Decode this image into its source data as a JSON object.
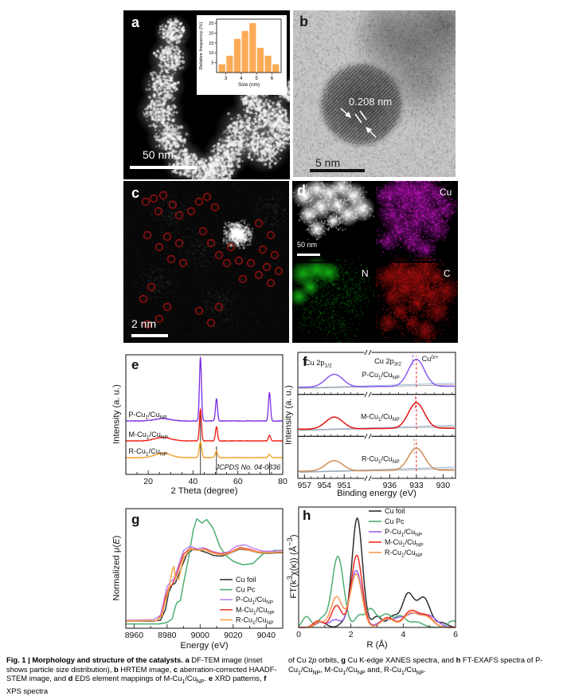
{
  "panels": {
    "a": {
      "label": "a",
      "scalebar": "50 nm"
    },
    "b": {
      "label": "b",
      "annotation": "0.208 nm",
      "scalebar": "5 nm"
    },
    "c": {
      "label": "c",
      "scalebar": "2 nm",
      "circle_count": 40,
      "circle_color": "#c81414"
    },
    "d": {
      "label": "d",
      "scalebar": "50 nm",
      "maps": [
        {
          "label": "Cu",
          "color": "#e41be4"
        },
        {
          "label": "N",
          "color": "#16c316"
        },
        {
          "label": "C",
          "color": "#e81515"
        }
      ]
    }
  },
  "caption": {
    "left_html": "<b>Fig. 1 | Morphology and structure of the catalysts.</b> <b>a</b> DF-TEM image (inset shows particle size distribution), <b>b</b> HRTEM image, <b>c</b> aberration-corrected HAADF-STEM image, and <b>d</b> EDS element mappings of M-Cu<sub>1</sub>/Cu<sub>NP</sub>. <b>e</b> XRD patterns, <b>f</b> XPS spectra",
    "right_html": "of Cu 2<i>p</i> orbits, <b>g</b> Cu K-edge XANES spectra, and <b>h</b> FT-EXAFS spectra of P-Cu<sub>1</sub>/Cu<sub>NP</sub>, M-Cu<sub>1</sub>/Cu<sub>NP</sub> and, R-Cu<sub>1</sub>/Cu<sub>NP</sub>."
  },
  "chart_data": [
    {
      "id": "histogram",
      "type": "bar",
      "xlabel": "Size (nm)",
      "ylabel": "Relative frequency (%)",
      "bin_centers": [
        2.75,
        3.25,
        3.75,
        4.25,
        4.75,
        5.25,
        5.75,
        6.25
      ],
      "values": [
        4.2,
        8.5,
        17,
        21,
        25,
        12.5,
        8.5,
        4.2
      ],
      "xticks": [
        3,
        4,
        5,
        6
      ],
      "yticks": [
        5,
        10,
        15,
        20,
        25
      ],
      "xlim": [
        2.4,
        6.6
      ],
      "ylim": [
        0,
        27
      ],
      "bar_color": "#fbab57"
    },
    {
      "id": "xrd",
      "type": "line",
      "panel_label": "e",
      "xlabel": "2 Theta (degree)",
      "ylabel": "Intensity (a. u.)",
      "xlim": [
        10,
        80
      ],
      "xticks": [
        20,
        40,
        60,
        80
      ],
      "series": [
        {
          "name": "P-Cu_{1}/Cu_{NP}",
          "color": "#7a2ce0",
          "baseline": 67,
          "sigma": 0.45,
          "peaks": [
            [
              43.3,
              80
            ],
            [
              50.45,
              28
            ],
            [
              74.1,
              36
            ]
          ],
          "hump": [
            26.5,
            3,
            3.5
          ]
        },
        {
          "name": "M-Cu_{1}/Cu_{NP}",
          "color": "#ee1b10",
          "baseline": 42,
          "sigma": 0.45,
          "peaks": [
            [
              43.3,
              40
            ],
            [
              50.45,
              18
            ],
            [
              74.1,
              7
            ]
          ],
          "hump": [
            26.5,
            4.5,
            3.5
          ]
        },
        {
          "name": "R-Cu_{1}/Cu_{NP}",
          "color": "#f59d1f",
          "baseline": 21,
          "sigma": 0.55,
          "peaks": [
            [
              43.3,
              20
            ],
            [
              50.45,
              8
            ],
            [
              74.1,
              4
            ]
          ],
          "hump": [
            26.5,
            5.5,
            3.5
          ]
        }
      ],
      "ref_sticks": {
        "label": "JCPDS No. 04-0836",
        "color": "#3c3c3c",
        "positions": [
          [
            43.3,
            75
          ],
          [
            50.45,
            35
          ],
          [
            74.1,
            15
          ]
        ]
      }
    },
    {
      "id": "xps",
      "type": "line-multipanel",
      "panel_label": "f",
      "xlabel": "Binding energy (eV)",
      "ylabel": "Intensity (a. u.)",
      "ticks": [
        957,
        954,
        951,
        936,
        933,
        930
      ],
      "segments": [
        {
          "range": [
            958,
            948
          ],
          "span": [
            0,
            0.42
          ]
        },
        {
          "range": [
            938,
            928.6
          ],
          "span": [
            0.47,
            1
          ]
        }
      ],
      "annotations": {
        "p12": "Cu 2p_{1/2}",
        "p32": "Cu 2p_{3/2}",
        "ox": "Cu^{0/+}"
      },
      "ref_line": {
        "x": 933.0,
        "color": "#e02020"
      },
      "peak_centers": {
        "p32": 933.0,
        "p32_sigma": 0.9,
        "p12": 952.5,
        "p12_sigma": 1.3
      },
      "subpanels": [
        {
          "name": "P-Cu_{1}/Cu_{NP}",
          "color": "#8a5af0",
          "amp32": 34,
          "amp12": 16,
          "accent_line": 933.4
        },
        {
          "name": "M-Cu_{1}/Cu_{NP}",
          "color": "#e81212",
          "amp32": 32,
          "amp12": 15,
          "accent_line": 933.1
        },
        {
          "name": "R-Cu_{1}/Cu_{NP}",
          "color": "#cf8d55",
          "amp32": 28,
          "amp12": 13,
          "accent_line": 933.25
        }
      ],
      "bg_line_colors": [
        "#9db6d6",
        "#9a9a9a"
      ]
    },
    {
      "id": "xanes",
      "type": "line",
      "panel_label": "g",
      "xlabel": "Energy (eV)",
      "ylabel": "Intensity (a. u.)",
      "ylabel_html": "Normalized μ(<i>E</i>)",
      "xlim": [
        8955,
        9050
      ],
      "ylim": [
        -0.08,
        1.58
      ],
      "xticks": [
        8960,
        8980,
        9000,
        9020,
        9040
      ],
      "legend_position": "bottom-right",
      "series": [
        {
          "name": "Cu foil",
          "color": "#3a3a3a",
          "points": [
            [
              8955,
              0.02
            ],
            [
              8970,
              0.02
            ],
            [
              8976,
              0.03
            ],
            [
              8979,
              0.18
            ],
            [
              8981,
              0.42
            ],
            [
              8983,
              0.52
            ],
            [
              8985,
              0.55
            ],
            [
              8988,
              0.72
            ],
            [
              8992,
              0.95
            ],
            [
              8996,
              1.02
            ],
            [
              9000,
              1.0
            ],
            [
              9004,
              0.97
            ],
            [
              9008,
              0.93
            ],
            [
              9013,
              0.92
            ],
            [
              9018,
              0.96
            ],
            [
              9024,
              1.02
            ],
            [
              9030,
              1.0
            ],
            [
              9035,
              0.97
            ],
            [
              9040,
              0.96
            ],
            [
              9050,
              0.97
            ]
          ]
        },
        {
          "name": "Cu Pc",
          "color": "#4caf72",
          "points": [
            [
              8955,
              -0.02
            ],
            [
              8975,
              -0.02
            ],
            [
              8980,
              0.0
            ],
            [
              8983,
              0.05
            ],
            [
              8985,
              0.22
            ],
            [
              8986,
              0.28
            ],
            [
              8988,
              0.3
            ],
            [
              8990,
              0.55
            ],
            [
              8993,
              0.9
            ],
            [
              8996,
              1.3
            ],
            [
              8998,
              1.44
            ],
            [
              9001,
              1.38
            ],
            [
              9004,
              1.43
            ],
            [
              9008,
              1.3
            ],
            [
              9012,
              1.05
            ],
            [
              9016,
              0.92
            ],
            [
              9020,
              0.85
            ],
            [
              9026,
              0.8
            ],
            [
              9032,
              0.82
            ],
            [
              9038,
              0.95
            ],
            [
              9045,
              1.0
            ],
            [
              9050,
              1.0
            ]
          ]
        },
        {
          "name": "P-Cu_{1}/Cu_{NP}",
          "color": "#bd85f2",
          "points": [
            [
              8955,
              0.03
            ],
            [
              8972,
              0.04
            ],
            [
              8976,
              0.1
            ],
            [
              8978,
              0.3
            ],
            [
              8980,
              0.5
            ],
            [
              8982,
              0.56
            ],
            [
              8984,
              0.6
            ],
            [
              8987,
              0.8
            ],
            [
              8990,
              1.0
            ],
            [
              8994,
              1.06
            ],
            [
              8998,
              1.02
            ],
            [
              9002,
              1.04
            ],
            [
              9007,
              0.99
            ],
            [
              9012,
              0.96
            ],
            [
              9017,
              0.98
            ],
            [
              9022,
              1.06
            ],
            [
              9027,
              1.08
            ],
            [
              9032,
              1.03
            ],
            [
              9038,
              0.99
            ],
            [
              9045,
              0.99
            ],
            [
              9050,
              1.0
            ]
          ]
        },
        {
          "name": "M-Cu_{1}/Cu_{NP}",
          "color": "#ef4136",
          "points": [
            [
              8955,
              0.02
            ],
            [
              8974,
              0.03
            ],
            [
              8977,
              0.12
            ],
            [
              8979,
              0.35
            ],
            [
              8981,
              0.48
            ],
            [
              8983,
              0.52
            ],
            [
              8986,
              0.68
            ],
            [
              8990,
              0.95
            ],
            [
              8994,
              1.03
            ],
            [
              8998,
              1.0
            ],
            [
              9003,
              1.02
            ],
            [
              9008,
              0.97
            ],
            [
              9013,
              0.95
            ],
            [
              9018,
              0.97
            ],
            [
              9024,
              1.04
            ],
            [
              9029,
              1.02
            ],
            [
              9035,
              0.98
            ],
            [
              9042,
              0.97
            ],
            [
              9050,
              0.98
            ]
          ]
        },
        {
          "name": "R-Cu_{1}/Cu_{NP}",
          "color": "#f9a348",
          "points": [
            [
              8955,
              0.02
            ],
            [
              8974,
              0.03
            ],
            [
              8977,
              0.1
            ],
            [
              8979,
              0.3
            ],
            [
              8981,
              0.45
            ],
            [
              8983,
              0.72
            ],
            [
              8984,
              0.78
            ],
            [
              8985,
              0.62
            ],
            [
              8987,
              0.6
            ],
            [
              8990,
              0.9
            ],
            [
              8994,
              1.02
            ],
            [
              8998,
              1.0
            ],
            [
              9003,
              1.01
            ],
            [
              9008,
              0.96
            ],
            [
              9013,
              0.94
            ],
            [
              9018,
              0.96
            ],
            [
              9024,
              1.03
            ],
            [
              9030,
              1.0
            ],
            [
              9036,
              0.97
            ],
            [
              9044,
              0.97
            ],
            [
              9050,
              0.98
            ]
          ]
        }
      ]
    },
    {
      "id": "exafs",
      "type": "line",
      "panel_label": "h",
      "xlabel": "R (Å)",
      "ylabel_html": "FT(k<sup>3</sup>χ(κ)) (Å<sup>−3</sup>)",
      "xlim": [
        0,
        6
      ],
      "ylim": [
        0,
        1.1
      ],
      "xticks": [
        0,
        2,
        4,
        6
      ],
      "legend_position": "top-right",
      "series": [
        {
          "name": "Cu foil",
          "color": "#2e2e2e",
          "gaussians": [
            [
              2.24,
              1.0,
              0.2
            ],
            [
              0.85,
              0.05,
              0.2
            ],
            [
              1.7,
              0.04,
              0.15
            ],
            [
              3.0,
              0.1,
              0.18
            ],
            [
              3.6,
              0.1,
              0.2
            ],
            [
              4.18,
              0.3,
              0.22
            ],
            [
              4.78,
              0.27,
              0.25
            ],
            [
              5.5,
              0.04,
              0.2
            ]
          ]
        },
        {
          "name": "Cu Pc",
          "color": "#4caf72",
          "gaussians": [
            [
              1.5,
              0.65,
              0.22
            ],
            [
              0.3,
              0.1,
              0.15
            ],
            [
              0.9,
              0.08,
              0.18
            ],
            [
              2.3,
              0.1,
              0.15
            ],
            [
              2.75,
              0.17,
              0.2
            ],
            [
              3.35,
              0.12,
              0.22
            ],
            [
              3.9,
              0.1,
              0.2
            ],
            [
              4.5,
              0.05,
              0.25
            ],
            [
              5.9,
              0.06,
              0.2
            ]
          ]
        },
        {
          "name": "P-Cu_{1}/Cu_{NP}",
          "color": "#9c63ee",
          "gaussians": [
            [
              2.2,
              0.52,
              0.23
            ],
            [
              1.4,
              0.07,
              0.2
            ],
            [
              0.8,
              0.05,
              0.2
            ],
            [
              3.3,
              0.07,
              0.25
            ],
            [
              3.8,
              0.06,
              0.2
            ],
            [
              4.35,
              0.12,
              0.3
            ],
            [
              5.0,
              0.1,
              0.3
            ]
          ]
        },
        {
          "name": "M-Cu_{1}/Cu_{NP}",
          "color": "#f22d20",
          "gaussians": [
            [
              2.22,
              0.66,
              0.21
            ],
            [
              1.45,
              0.2,
              0.2
            ],
            [
              0.75,
              0.06,
              0.18
            ],
            [
              3.4,
              0.09,
              0.25
            ],
            [
              4.3,
              0.15,
              0.28
            ],
            [
              4.9,
              0.1,
              0.25
            ]
          ]
        },
        {
          "name": "R-Cu_{1}/Cu_{NP}",
          "color": "#f89b55",
          "gaussians": [
            [
              2.2,
              0.49,
              0.22
            ],
            [
              1.45,
              0.28,
              0.22
            ],
            [
              0.8,
              0.05,
              0.18
            ],
            [
              3.4,
              0.08,
              0.25
            ],
            [
              4.3,
              0.13,
              0.28
            ],
            [
              4.9,
              0.09,
              0.25
            ]
          ]
        }
      ]
    }
  ]
}
